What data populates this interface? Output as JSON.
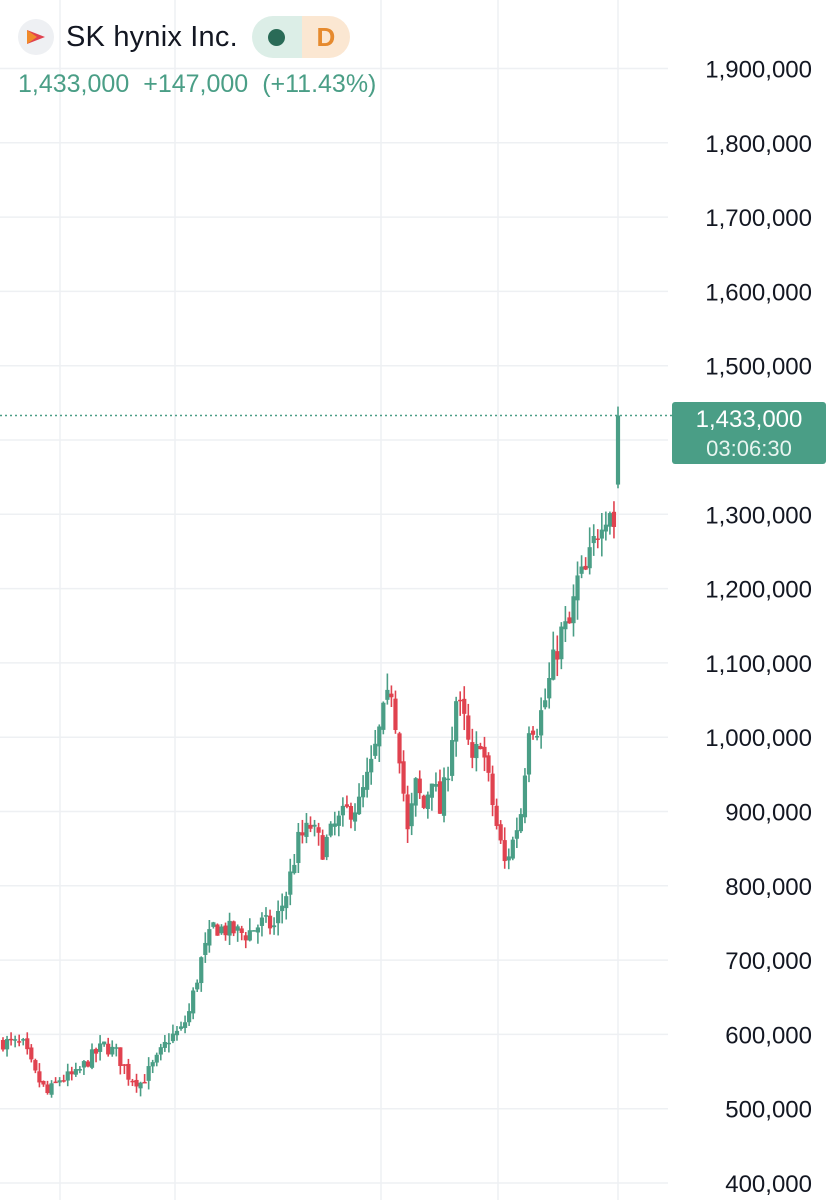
{
  "header": {
    "symbol_name": "SK hynix Inc.",
    "interval_badge": "D",
    "market_status_icon": "open-dot-icon"
  },
  "quote": {
    "last": "1,433,000",
    "change": "+147,000",
    "change_pct": "(+11.43%)"
  },
  "price_tag": {
    "price": "1,433,000",
    "countdown": "03:06:30"
  },
  "colors": {
    "up": "#4a9e86",
    "down": "#e0424f",
    "grid": "#eef0f3",
    "axis_text": "#131722"
  },
  "chart_data": {
    "type": "candlestick",
    "title": "",
    "xlabel": "",
    "ylabel": "",
    "ylim": [
      400000,
      1900000
    ],
    "y_ticks": [
      {
        "value": 1900000,
        "label": "1,900,000"
      },
      {
        "value": 1800000,
        "label": "1,800,000"
      },
      {
        "value": 1700000,
        "label": "1,700,000"
      },
      {
        "value": 1600000,
        "label": "1,600,000"
      },
      {
        "value": 1500000,
        "label": "1,500,000"
      },
      {
        "value": 1300000,
        "label": "1,300,000"
      },
      {
        "value": 1200000,
        "label": "1,200,000"
      },
      {
        "value": 1100000,
        "label": "1,100,000"
      },
      {
        "value": 1000000,
        "label": "1,000,000"
      },
      {
        "value": 900000,
        "label": "900,000"
      },
      {
        "value": 800000,
        "label": "800,000"
      },
      {
        "value": 700000,
        "label": "700,000"
      },
      {
        "value": 600000,
        "label": "600,000"
      },
      {
        "value": 500000,
        "label": "500,000"
      },
      {
        "value": 400000,
        "label": "400,000"
      }
    ],
    "last_price": 1433000,
    "grid": true,
    "anchors": [
      [
        0,
        590000
      ],
      [
        5,
        585000
      ],
      [
        8,
        545000
      ],
      [
        11,
        520000
      ],
      [
        14,
        540000
      ],
      [
        18,
        545000
      ],
      [
        21,
        565000
      ],
      [
        25,
        585000
      ],
      [
        28,
        575000
      ],
      [
        31,
        545000
      ],
      [
        34,
        535000
      ],
      [
        38,
        565000
      ],
      [
        41,
        595000
      ],
      [
        44,
        605000
      ],
      [
        46,
        630000
      ],
      [
        49,
        700000
      ],
      [
        52,
        745000
      ],
      [
        56,
        740000
      ],
      [
        60,
        735000
      ],
      [
        64,
        750000
      ],
      [
        67,
        745000
      ],
      [
        70,
        790000
      ],
      [
        73,
        860000
      ],
      [
        76,
        880000
      ],
      [
        79,
        850000
      ],
      [
        82,
        880000
      ],
      [
        85,
        900000
      ],
      [
        88,
        910000
      ],
      [
        91,
        960000
      ],
      [
        94,
        1030000
      ],
      [
        96,
        1065000
      ],
      [
        98,
        980000
      ],
      [
        100,
        870000
      ],
      [
        102,
        935000
      ],
      [
        104,
        905000
      ],
      [
        106,
        950000
      ],
      [
        108,
        900000
      ],
      [
        110,
        960000
      ],
      [
        112,
        1050000
      ],
      [
        114,
        1020000
      ],
      [
        116,
        960000
      ],
      [
        118,
        1000000
      ],
      [
        120,
        940000
      ],
      [
        122,
        880000
      ],
      [
        124,
        830000
      ],
      [
        126,
        860000
      ],
      [
        128,
        900000
      ],
      [
        130,
        1020000
      ],
      [
        132,
        1015000
      ],
      [
        134,
        1050000
      ],
      [
        136,
        1100000
      ],
      [
        138,
        1140000
      ],
      [
        140,
        1150000
      ],
      [
        142,
        1210000
      ],
      [
        144,
        1220000
      ],
      [
        146,
        1260000
      ],
      [
        148,
        1300000
      ],
      [
        150,
        1310000
      ],
      [
        151,
        1286000
      ],
      [
        152,
        1433000
      ]
    ],
    "big_last_candle": {
      "open": 1340000,
      "high": 1445000,
      "low": 1335000,
      "close": 1433000
    }
  }
}
